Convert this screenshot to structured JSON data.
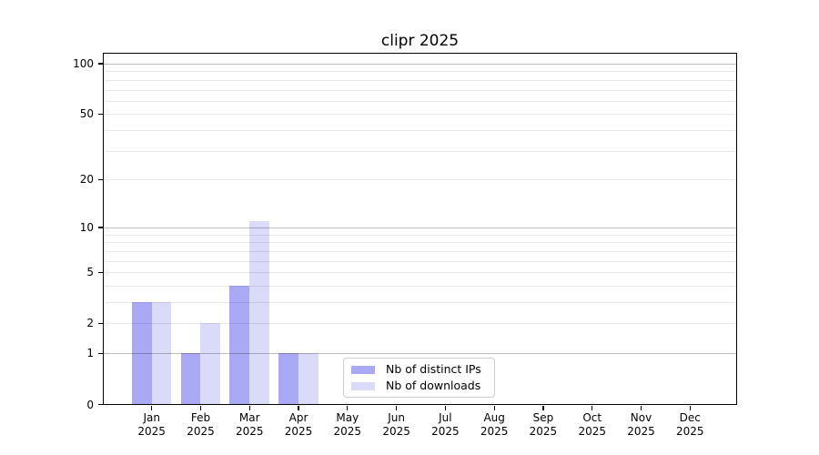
{
  "title": "clipr 2025",
  "chart_data": {
    "type": "bar",
    "title": "clipr 2025",
    "y_scale": "log10(1+x)",
    "x_year_label": "2025",
    "categories": [
      "Jan",
      "Feb",
      "Mar",
      "Apr",
      "May",
      "Jun",
      "Jul",
      "Aug",
      "Sep",
      "Oct",
      "Nov",
      "Dec"
    ],
    "series": [
      {
        "name": "Nb of distinct IPs",
        "color": "#a9a9f6",
        "values": [
          3,
          1,
          4,
          1,
          0,
          0,
          0,
          0,
          0,
          0,
          0,
          0
        ]
      },
      {
        "name": "Nb of downloads",
        "color": "#dadaf9",
        "values": [
          3,
          2,
          11,
          1,
          0,
          0,
          0,
          0,
          0,
          0,
          0,
          0
        ]
      }
    ],
    "ylim": [
      0,
      116
    ],
    "yticks": [
      {
        "value": 0,
        "label": "0"
      },
      {
        "value": 1,
        "label": "1"
      },
      {
        "value": 2,
        "label": "2"
      },
      {
        "value": 5,
        "label": "5"
      },
      {
        "value": 10,
        "label": "10"
      },
      {
        "value": 20,
        "label": "20"
      },
      {
        "value": 50,
        "label": "50"
      },
      {
        "value": 100,
        "label": "100"
      }
    ],
    "gridlines": {
      "major": [
        1,
        10,
        100
      ],
      "minor": [
        2,
        3,
        4,
        5,
        6,
        7,
        8,
        9,
        20,
        30,
        40,
        50,
        60,
        70,
        80,
        90
      ],
      "major_color": "rgba(0,0,0,0.26)",
      "minor_color": "rgba(0,0,0,0.09)"
    },
    "legend_position": "inside bottom, left of center",
    "grid": true
  }
}
